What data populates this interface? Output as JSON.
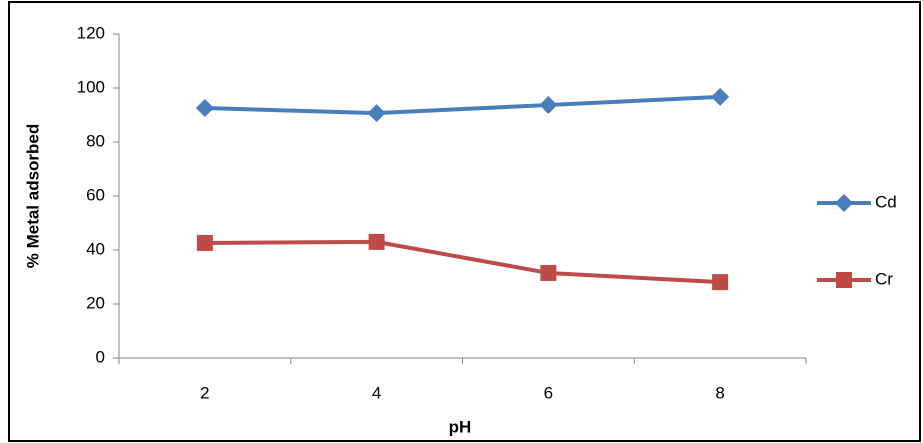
{
  "chart_data": {
    "type": "line",
    "x_label": "pH",
    "y_label": "% Metal adsorbed",
    "categories": [
      "2",
      "4",
      "6",
      "8"
    ],
    "series": [
      {
        "name": "Cd",
        "color": "#4a7ebb",
        "marker": "diamond",
        "values": [
          92.6,
          90.7,
          93.7,
          96.7
        ]
      },
      {
        "name": "Cr",
        "color": "#be4b48",
        "marker": "square",
        "values": [
          42.6,
          43.0,
          31.5,
          28.1
        ]
      }
    ],
    "ylim": [
      0,
      120
    ],
    "yticks": [
      0,
      20,
      40,
      60,
      80,
      100,
      120
    ],
    "grid": false,
    "legend": "right"
  }
}
